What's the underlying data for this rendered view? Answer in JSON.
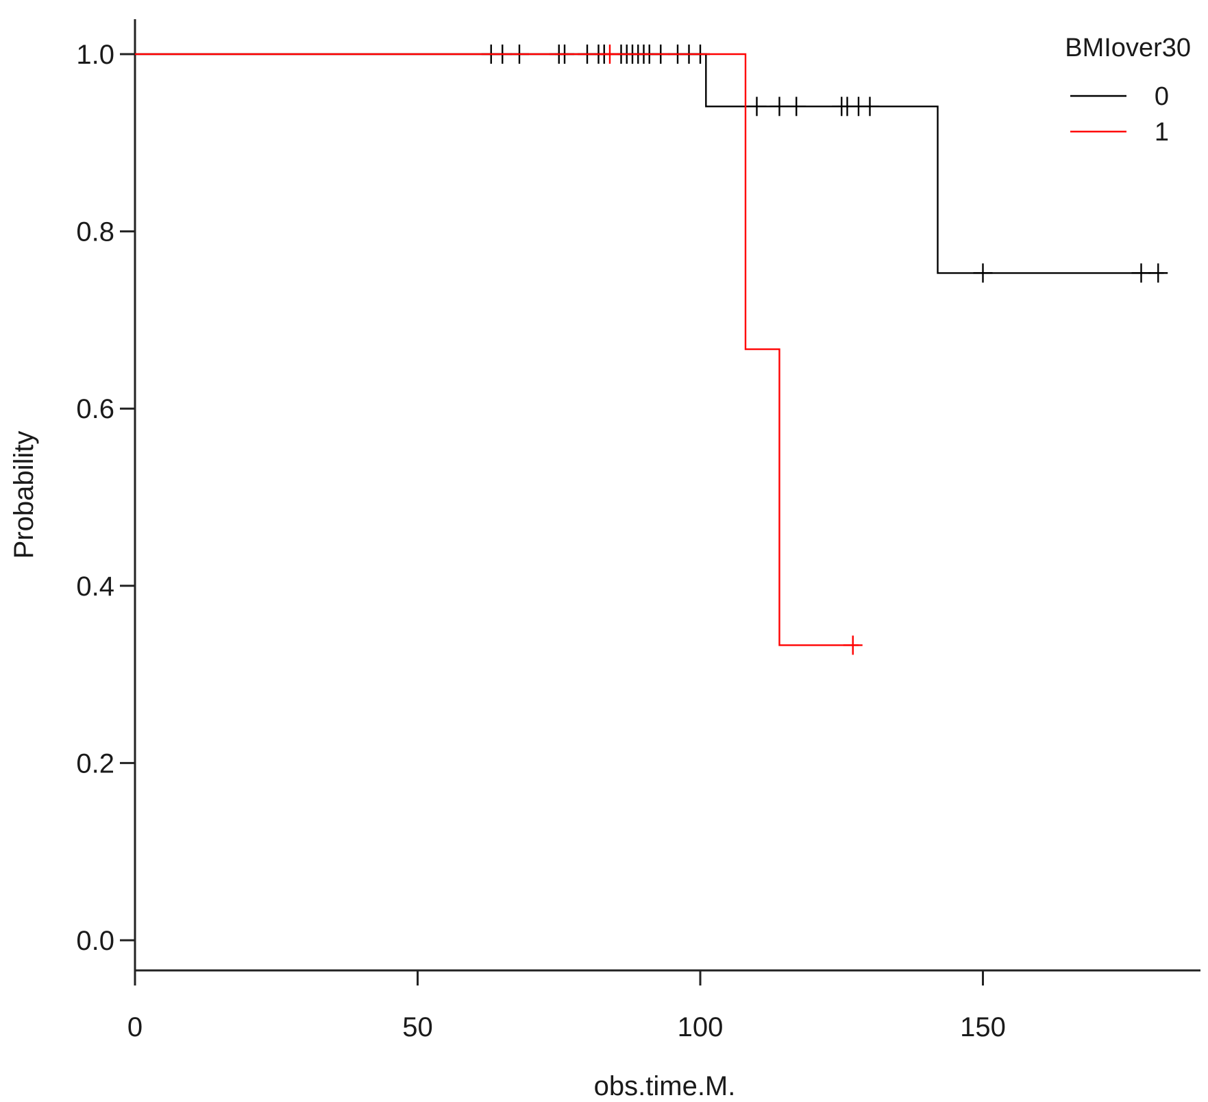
{
  "chart_data": {
    "type": "line",
    "subtype": "kaplan-meier-step",
    "title": "",
    "xlabel": "obs.time.M.",
    "ylabel": "Probability",
    "xlim": [
      0,
      188
    ],
    "ylim": [
      -0.04,
      1.04
    ],
    "x_ticks": [
      0,
      50,
      100,
      150
    ],
    "x_tick_labels": [
      "0",
      "50",
      "100",
      "150"
    ],
    "y_ticks": [
      0.0,
      0.2,
      0.4,
      0.6,
      0.8,
      1.0
    ],
    "y_tick_labels": [
      "0.0",
      "0.2",
      "0.4",
      "0.6",
      "0.8",
      "1.0"
    ],
    "grid": false,
    "legend": {
      "title": "BMIover30",
      "placement": "top-right"
    },
    "series": [
      {
        "name": "0",
        "color": "#000000",
        "steps": [
          [
            0,
            1.0
          ],
          [
            101,
            1.0
          ],
          [
            101,
            0.941
          ],
          [
            142,
            0.941
          ],
          [
            142,
            0.753
          ],
          [
            182,
            0.753
          ]
        ],
        "censor_times": [
          63,
          65,
          68,
          75,
          76,
          80,
          82,
          83,
          86,
          87,
          88,
          89,
          90,
          91,
          93,
          96,
          98,
          100,
          110,
          114,
          117,
          125,
          126,
          128,
          130,
          150,
          178,
          181
        ],
        "censor_values": [
          1.0,
          1.0,
          1.0,
          1.0,
          1.0,
          1.0,
          1.0,
          1.0,
          1.0,
          1.0,
          1.0,
          1.0,
          1.0,
          1.0,
          1.0,
          1.0,
          1.0,
          1.0,
          0.941,
          0.941,
          0.941,
          0.941,
          0.941,
          0.941,
          0.941,
          0.753,
          0.753,
          0.753
        ]
      },
      {
        "name": "1",
        "color": "#ff0000",
        "steps": [
          [
            0,
            1.0
          ],
          [
            108,
            1.0
          ],
          [
            108,
            0.667
          ],
          [
            114,
            0.667
          ],
          [
            114,
            0.333
          ],
          [
            128,
            0.333
          ]
        ],
        "censor_times": [
          84,
          127
        ],
        "censor_values": [
          1.0,
          0.333
        ]
      }
    ]
  }
}
